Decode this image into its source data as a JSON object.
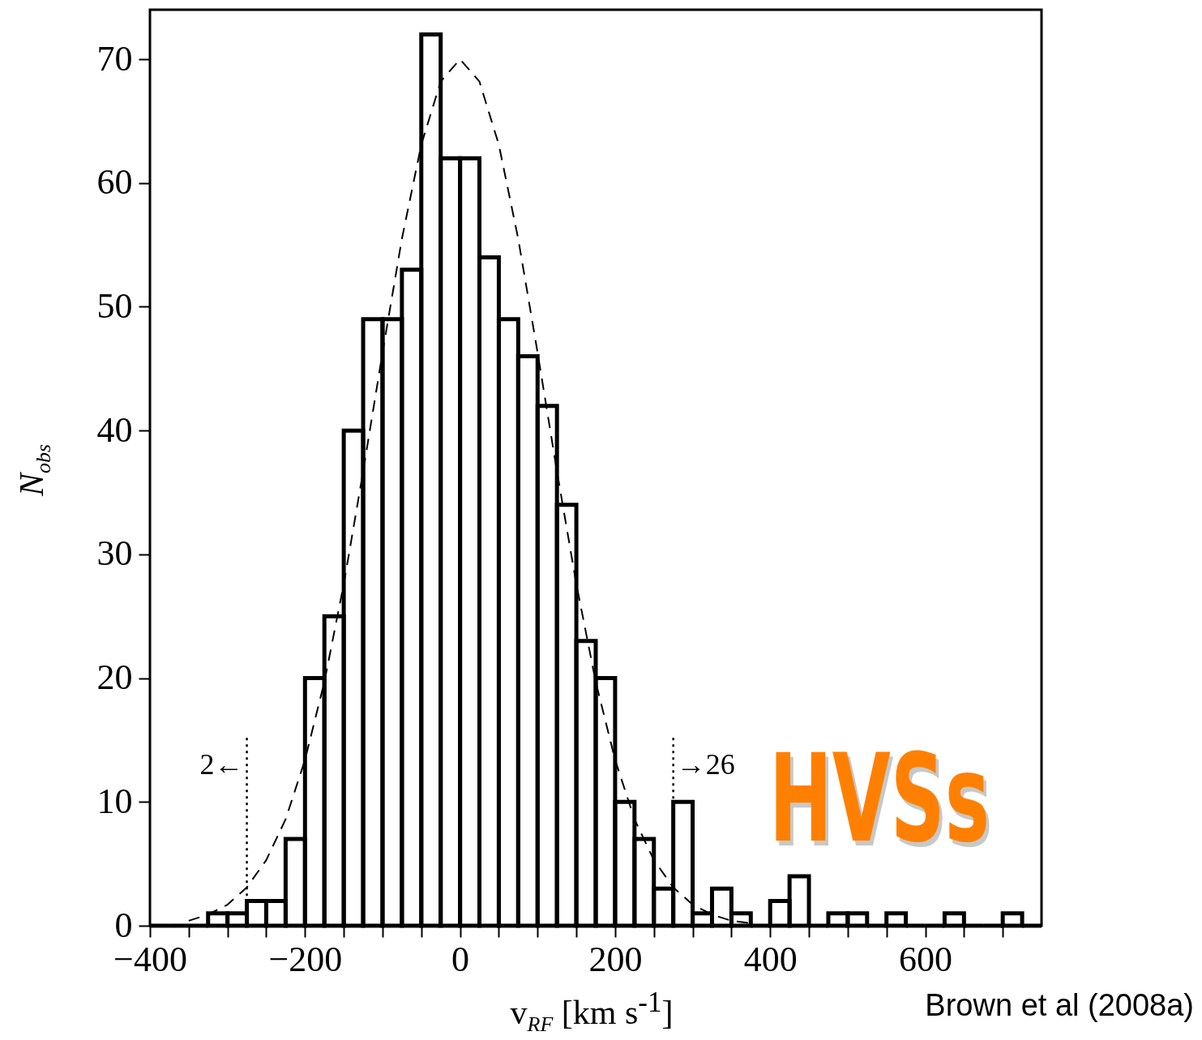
{
  "chart_data": {
    "type": "histogram",
    "xlabel": "v$_{RF}$ [km s$^{-1}$]",
    "ylabel": "N$_{obs}$",
    "bins": [
      -400,
      -375,
      -350,
      -325,
      -300,
      -275,
      -250,
      -225,
      -200,
      -175,
      -150,
      -125,
      -100,
      -75,
      -50,
      -25,
      0,
      25,
      50,
      75,
      100,
      125,
      150,
      175,
      200,
      225,
      250,
      275,
      300,
      325,
      350,
      375,
      400,
      425,
      450,
      475,
      500,
      525,
      550,
      575,
      600,
      625,
      650,
      675,
      700,
      725,
      750
    ],
    "values": [
      0,
      0,
      0,
      1,
      1,
      2,
      2,
      7,
      20,
      25,
      40,
      49,
      49,
      53,
      72,
      62,
      62,
      54,
      49,
      46,
      42,
      34,
      23,
      20,
      10,
      7,
      3,
      10,
      1,
      3,
      1,
      0,
      2,
      4,
      0,
      1,
      1,
      0,
      1,
      0,
      0,
      1,
      0,
      0,
      1,
      0
    ],
    "color": "#000000",
    "series": [
      {
        "type": "line",
        "color": "#000000",
        "line_style": "dashed",
        "x": [
          -350,
          -325,
          -300,
          -275,
          -250,
          -225,
          -200,
          -175,
          -150,
          -125,
          -100,
          -75,
          -50,
          -25,
          0,
          25,
          50,
          75,
          100,
          125,
          150,
          175,
          200,
          225,
          250,
          275,
          300,
          325,
          350,
          375
        ],
        "values": [
          0.4,
          0.9,
          1.7,
          3.1,
          5.3,
          8.6,
          13.4,
          19.7,
          27.6,
          36.7,
          46.3,
          55.5,
          63.1,
          68.2,
          70,
          68.2,
          63.1,
          55.5,
          46.3,
          36.7,
          27.6,
          19.7,
          13.4,
          8.6,
          5.3,
          3.1,
          1.7,
          0.9,
          0.4,
          0.2
        ]
      }
    ],
    "ref_lines": [
      {
        "axis": "x",
        "value": -275,
        "label": "2←",
        "line_style": "dotted",
        "color": "#000000"
      },
      {
        "axis": "x",
        "value": 275,
        "label": "→26",
        "line_style": "dotted",
        "color": "#000000"
      }
    ],
    "annotations": [
      "HVSs",
      "Brown et al (2008a)"
    ],
    "xlim": [
      -400,
      750
    ],
    "ylim": [
      0,
      74
    ],
    "xticks": [
      -400,
      {
        "value": -350,
        "label": null
      },
      {
        "value": -300,
        "label": null
      },
      {
        "value": -250,
        "label": null
      },
      -200,
      {
        "value": -150,
        "label": null
      },
      {
        "value": -100,
        "label": null
      },
      {
        "value": -50,
        "label": null
      },
      0,
      {
        "value": 50,
        "label": null
      },
      {
        "value": 100,
        "label": null
      },
      {
        "value": 150,
        "label": null
      },
      200,
      {
        "value": 250,
        "label": null
      },
      {
        "value": 300,
        "label": null
      },
      {
        "value": 350,
        "label": null
      },
      400,
      {
        "value": 450,
        "label": null
      },
      {
        "value": 500,
        "label": null
      },
      {
        "value": 550,
        "label": null
      },
      600,
      {
        "value": 650,
        "label": null
      },
      {
        "value": 700,
        "label": null
      }
    ],
    "yticks": [
      0,
      10,
      20,
      30,
      40,
      50,
      60,
      70
    ],
    "grid": false
  }
}
